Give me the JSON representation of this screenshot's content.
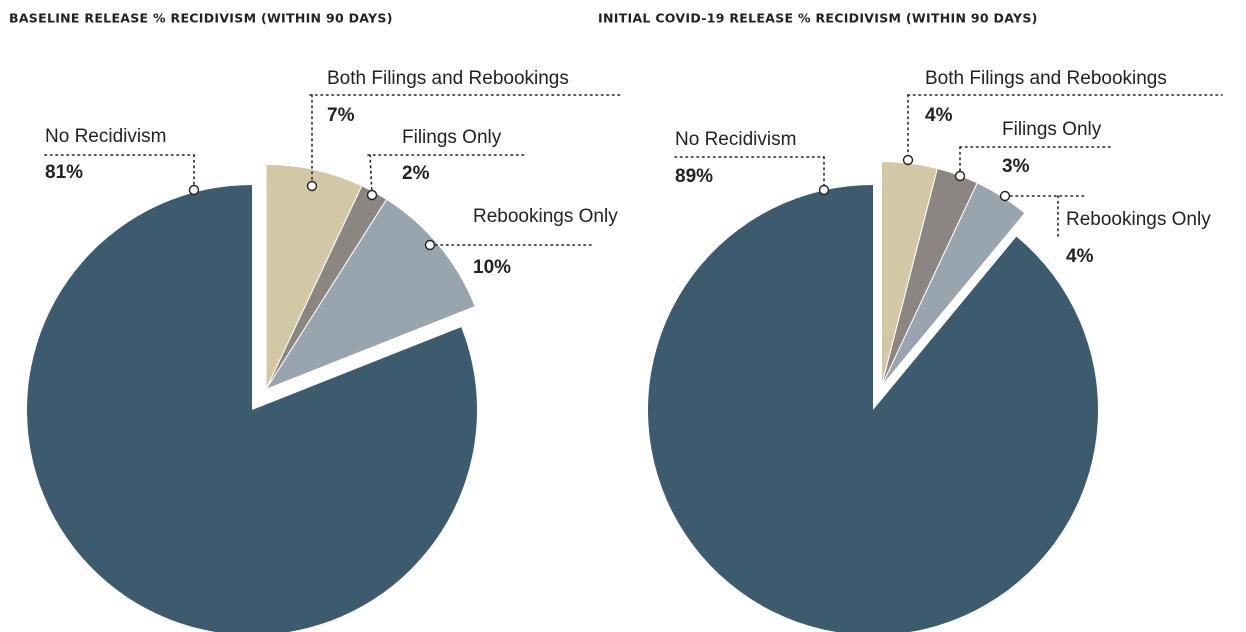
{
  "chart_data": [
    {
      "type": "pie",
      "title": "BASELINE RELEASE % RECIDIVISM (WITHIN 90 DAYS)",
      "categories": [
        "Both Filings and Rebookings",
        "Filings Only",
        "Rebookings Only",
        "No Recidivism"
      ],
      "values": [
        7,
        2,
        10,
        81
      ],
      "value_labels": [
        "7%",
        "2%",
        "10%",
        "81%"
      ],
      "colors": [
        "#d3c8a5",
        "#8b8681",
        "#98a4ae",
        "#3d5b6f"
      ]
    },
    {
      "type": "pie",
      "title": "INITIAL COVID-19 RELEASE % RECIDIVISM (WITHIN 90 DAYS)",
      "categories": [
        "Both Filings and Rebookings",
        "Filings Only",
        "Rebookings Only",
        "No Recidivism"
      ],
      "values": [
        4,
        3,
        4,
        89
      ],
      "value_labels": [
        "4%",
        "3%",
        "4%",
        "89%"
      ],
      "colors": [
        "#d3c8a5",
        "#8b8681",
        "#98a4ae",
        "#3d5b6f"
      ]
    }
  ]
}
